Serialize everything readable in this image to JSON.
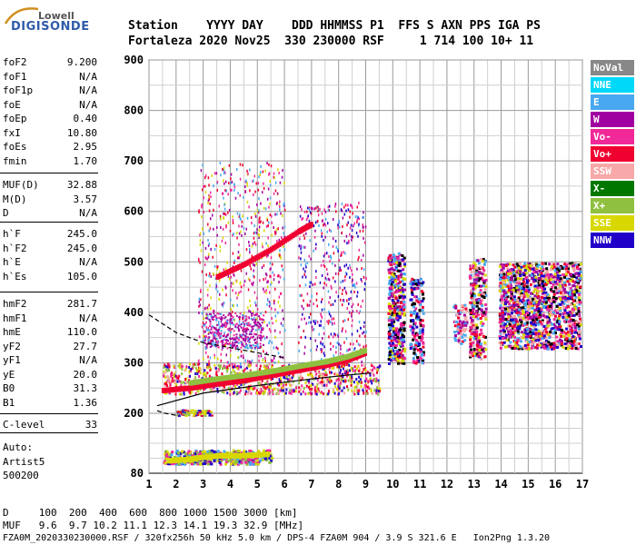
{
  "logo": {
    "brand": "Lowell",
    "product": "DIGISONDE"
  },
  "header": {
    "line1": "Station    YYYY DAY    DDD HHMMSS P1  FFS S AXN PPS IGA PS",
    "line2": "Fortaleza 2020 Nov25  330 230000 RSF     1 714 100 10+ 11"
  },
  "params": [
    {
      "label": "foF2",
      "value": "9.200"
    },
    {
      "label": "foF1",
      "value": "N/A"
    },
    {
      "label": "foF1p",
      "value": "N/A"
    },
    {
      "label": "foE",
      "value": "N/A"
    },
    {
      "label": "foEp",
      "value": "0.40"
    },
    {
      "label": "fxI",
      "value": "10.80"
    },
    {
      "label": "foEs",
      "value": "2.95"
    },
    {
      "label": "fmin",
      "value": "1.70"
    },
    {
      "label": "MUF(D)",
      "value": "32.88"
    },
    {
      "label": "M(D)",
      "value": "3.57"
    },
    {
      "label": "D",
      "value": "N/A"
    },
    {
      "label": "h`F",
      "value": "245.0"
    },
    {
      "label": "h`F2",
      "value": "245.0"
    },
    {
      "label": "h`E",
      "value": "N/A"
    },
    {
      "label": "h`Es",
      "value": "105.0"
    },
    {
      "label": "hmF2",
      "value": "281.7"
    },
    {
      "label": "hmF1",
      "value": "N/A"
    },
    {
      "label": "hmE",
      "value": "110.0"
    },
    {
      "label": "yF2",
      "value": "27.7"
    },
    {
      "label": "yF1",
      "value": "N/A"
    },
    {
      "label": "yE",
      "value": "20.0"
    },
    {
      "label": "B0",
      "value": "31.3"
    },
    {
      "label": "B1",
      "value": "1.36"
    },
    {
      "label": "C-level",
      "value": "33"
    }
  ],
  "autoscaling": {
    "line1": "Auto:",
    "line2": "Artist5",
    "line3": "500200"
  },
  "legend": [
    {
      "label": "NoVal",
      "color": "#808080"
    },
    {
      "label": "NNE",
      "color": "#00d8f8"
    },
    {
      "label": "E",
      "color": "#48a8f0"
    },
    {
      "label": "W",
      "color": "#a000a0"
    },
    {
      "label": "Vo-",
      "color": "#f02898"
    },
    {
      "label": "Vo+",
      "color": "#f00030"
    },
    {
      "label": "SSW",
      "color": "#f8a8a8"
    },
    {
      "label": "X-",
      "color": "#007800"
    },
    {
      "label": "X+",
      "color": "#90c040"
    },
    {
      "label": "SSE",
      "color": "#d8d800"
    },
    {
      "label": "NNW",
      "color": "#2000c8"
    }
  ],
  "bottom": {
    "d_line": "D     100  200  400  600  800 1000 1500 3000 [km]",
    "muf_line": "MUF   9.6  9.7 10.2 11.1 12.3 14.1 19.3 32.9 [MHz]",
    "file_line": "FZA0M_2020330230000.RSF / 320fx256h 50 kHz 5.0 km / DPS-4 FZA0M 904 / 3.9 S 321.6 E   Ion2Png 1.3.20"
  },
  "chart_data": {
    "type": "scatter",
    "xlim": [
      1,
      17
    ],
    "ylim": [
      80,
      900
    ],
    "xticks": [
      "1",
      "2",
      "3",
      "4",
      "5",
      "6",
      "7",
      "8",
      "9",
      "10",
      "11",
      "12",
      "13",
      "14",
      "15",
      "16",
      "17"
    ],
    "yticks": [
      "900",
      "800",
      "700",
      "600",
      "500",
      "400",
      "300",
      "200",
      "80"
    ],
    "ytick_values": [
      900,
      800,
      700,
      600,
      500,
      400,
      300,
      200,
      80
    ],
    "grid": true,
    "traces": [
      {
        "name": "O-trace",
        "color": "#f00030",
        "x": [
          1.5,
          2.5,
          3.5,
          4.5,
          5.5,
          6.5,
          7.5,
          8.3,
          9.0
        ],
        "y": [
          245,
          250,
          258,
          265,
          275,
          285,
          295,
          305,
          320
        ]
      },
      {
        "name": "X-trace",
        "color": "#90c040",
        "x": [
          2.5,
          3.5,
          4.5,
          5.5,
          6.5,
          7.5,
          8.3,
          9.0
        ],
        "y": [
          260,
          268,
          275,
          283,
          293,
          302,
          312,
          325
        ]
      },
      {
        "name": "Es-trace",
        "color": "#d8d800",
        "x": [
          1.7,
          2.3,
          3.0,
          3.6,
          4.2,
          4.8,
          5.4
        ],
        "y": [
          105,
          107,
          112,
          115,
          115,
          116,
          118
        ]
      },
      {
        "name": "high-trace",
        "color": "#f00030",
        "x": [
          3.5,
          4.5,
          5.5,
          6.5,
          7.0
        ],
        "y": [
          470,
          495,
          525,
          560,
          575
        ]
      }
    ],
    "profile_lines": [
      {
        "style": "solid",
        "x": [
          1.3,
          3.0,
          5.0,
          7.0,
          8.4,
          9.2
        ],
        "y": [
          215,
          240,
          255,
          268,
          276,
          280
        ]
      },
      {
        "style": "dashed",
        "x": [
          1.0,
          2.0,
          3.0,
          4.0,
          5.0,
          6.0
        ],
        "y": [
          395,
          360,
          340,
          330,
          320,
          310
        ]
      },
      {
        "style": "dashed",
        "x": [
          1.3,
          1.6,
          2.0
        ],
        "y": [
          205,
          200,
          196
        ]
      }
    ]
  }
}
